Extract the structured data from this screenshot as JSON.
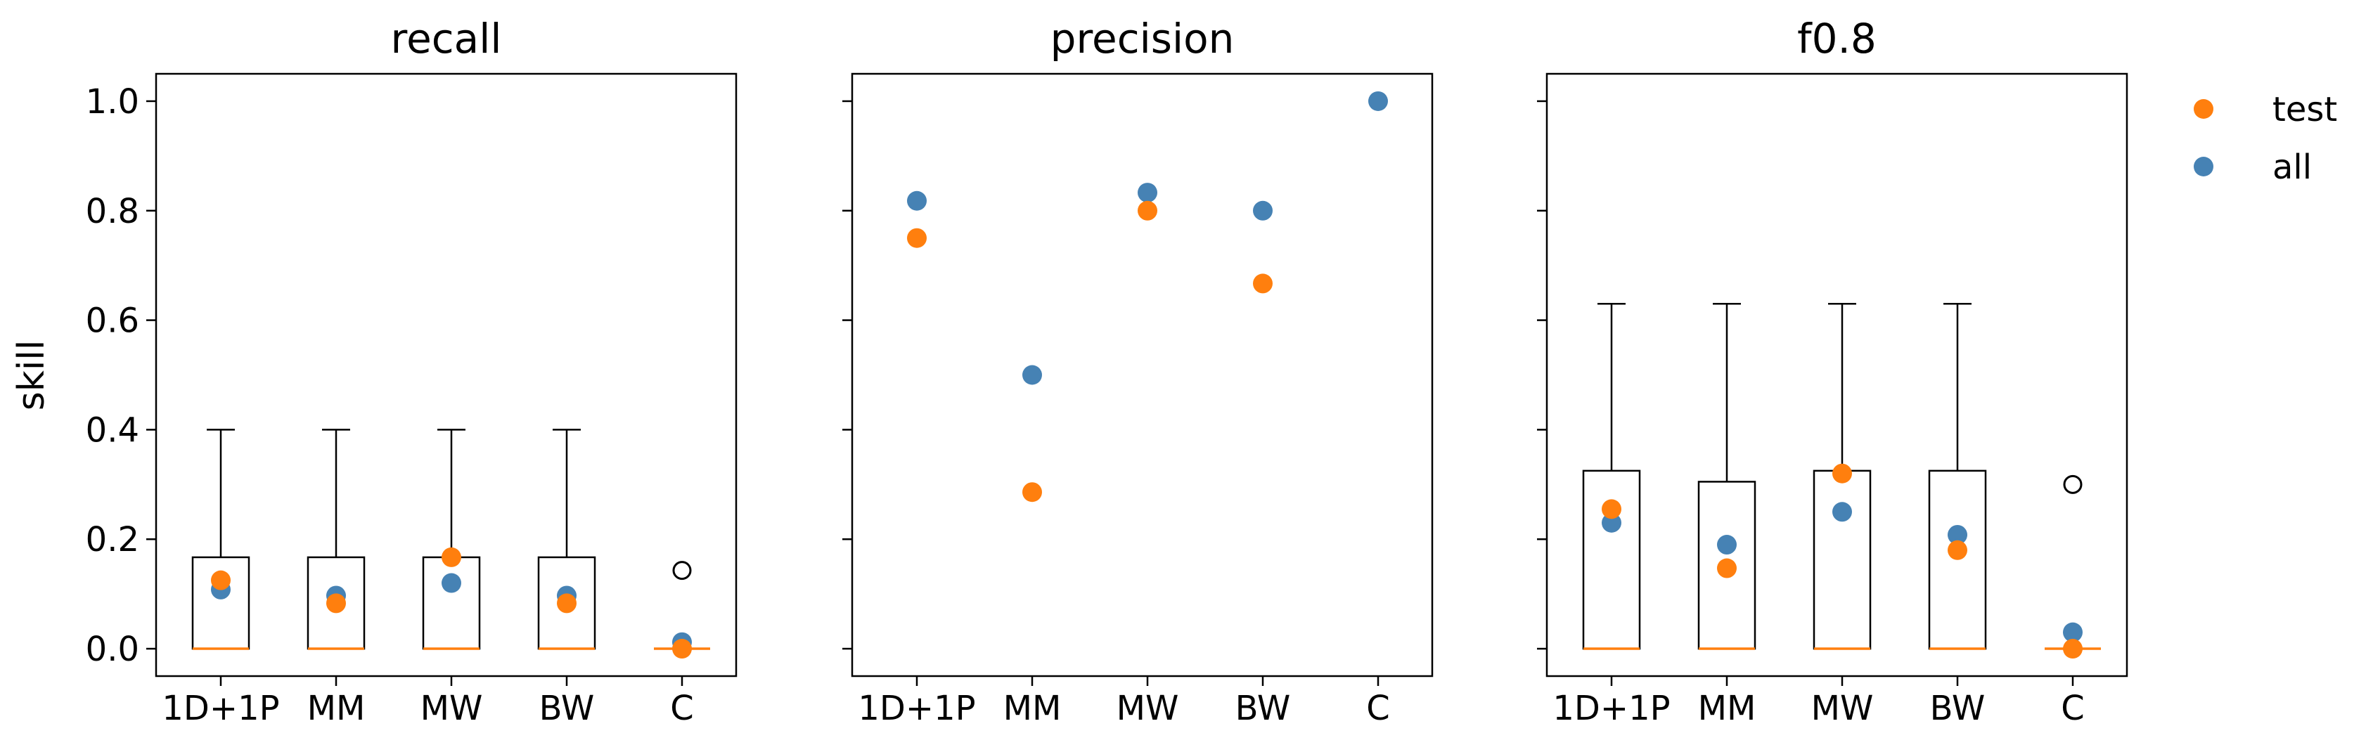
{
  "figure": {
    "ylabel": "skill",
    "legend": {
      "placement": "outside-top-right",
      "entries": [
        {
          "label": "test",
          "color": "#ff7f0e"
        },
        {
          "label": "all",
          "color": "#4682b4"
        }
      ]
    }
  },
  "colors": {
    "test": "#ff7f0e",
    "all": "#4682b4",
    "box": "#000000",
    "median": "#ff7f0e"
  },
  "chart_data": [
    {
      "type": "box",
      "title": "recall",
      "categories": [
        "1D+1P",
        "MM",
        "MW",
        "BW",
        "C"
      ],
      "ylim": [
        -0.05,
        1.05
      ],
      "yticks": [
        0.0,
        0.2,
        0.4,
        0.6,
        0.8,
        1.0
      ],
      "ytick_labels": [
        "0.0",
        "0.2",
        "0.4",
        "0.6",
        "0.8",
        "1.0"
      ],
      "boxes": [
        {
          "q1": 0.0,
          "median": 0.0,
          "q3": 0.167,
          "whisker_low": 0.0,
          "whisker_high": 0.4,
          "fliers": []
        },
        {
          "q1": 0.0,
          "median": 0.0,
          "q3": 0.167,
          "whisker_low": 0.0,
          "whisker_high": 0.4,
          "fliers": []
        },
        {
          "q1": 0.0,
          "median": 0.0,
          "q3": 0.167,
          "whisker_low": 0.0,
          "whisker_high": 0.4,
          "fliers": []
        },
        {
          "q1": 0.0,
          "median": 0.0,
          "q3": 0.167,
          "whisker_low": 0.0,
          "whisker_high": 0.4,
          "fliers": []
        },
        {
          "q1": 0.0,
          "median": 0.0,
          "q3": 0.0,
          "whisker_low": 0.0,
          "whisker_high": 0.0,
          "fliers": [
            0.143
          ]
        }
      ],
      "series": [
        {
          "name": "test",
          "values": [
            0.125,
            0.083,
            0.167,
            0.083,
            0.0
          ]
        },
        {
          "name": "all",
          "values": [
            0.108,
            0.097,
            0.12,
            0.097,
            0.012
          ]
        }
      ]
    },
    {
      "type": "scatter",
      "title": "precision",
      "categories": [
        "1D+1P",
        "MM",
        "MW",
        "BW",
        "C"
      ],
      "ylim": [
        -0.05,
        1.05
      ],
      "yticks": [
        0.0,
        0.2,
        0.4,
        0.6,
        0.8,
        1.0
      ],
      "ytick_labels": [],
      "boxes": [],
      "series": [
        {
          "name": "test",
          "values": [
            0.75,
            0.286,
            0.8,
            0.667,
            null
          ]
        },
        {
          "name": "all",
          "values": [
            0.818,
            0.5,
            0.833,
            0.8,
            1.0
          ]
        }
      ]
    },
    {
      "type": "box",
      "title": "f0.8",
      "categories": [
        "1D+1P",
        "MM",
        "MW",
        "BW",
        "C"
      ],
      "ylim": [
        -0.05,
        1.05
      ],
      "yticks": [
        0.0,
        0.2,
        0.4,
        0.6,
        0.8,
        1.0
      ],
      "ytick_labels": [],
      "boxes": [
        {
          "q1": 0.0,
          "median": 0.0,
          "q3": 0.325,
          "whisker_low": 0.0,
          "whisker_high": 0.63,
          "fliers": []
        },
        {
          "q1": 0.0,
          "median": 0.0,
          "q3": 0.305,
          "whisker_low": 0.0,
          "whisker_high": 0.63,
          "fliers": []
        },
        {
          "q1": 0.0,
          "median": 0.0,
          "q3": 0.325,
          "whisker_low": 0.0,
          "whisker_high": 0.63,
          "fliers": []
        },
        {
          "q1": 0.0,
          "median": 0.0,
          "q3": 0.325,
          "whisker_low": 0.0,
          "whisker_high": 0.63,
          "fliers": []
        },
        {
          "q1": 0.0,
          "median": 0.0,
          "q3": 0.0,
          "whisker_low": 0.0,
          "whisker_high": 0.0,
          "fliers": [
            0.3
          ]
        }
      ],
      "series": [
        {
          "name": "test",
          "values": [
            0.255,
            0.147,
            0.32,
            0.18,
            0.0
          ]
        },
        {
          "name": "all",
          "values": [
            0.23,
            0.19,
            0.25,
            0.208,
            0.03
          ]
        }
      ]
    }
  ]
}
